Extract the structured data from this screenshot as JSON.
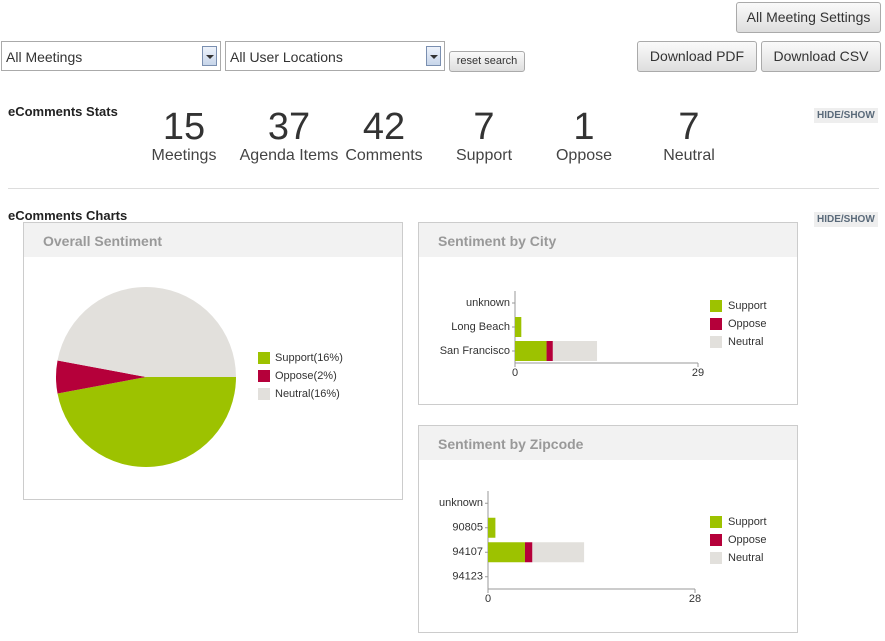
{
  "toolbar": {
    "settings_button": "All Meeting Settings",
    "meetings_select": "All Meetings",
    "locations_select": "All User Locations",
    "reset_button": "reset search",
    "pdf_button": "Download PDF",
    "csv_button": "Download CSV"
  },
  "stats": {
    "title": "eComments Stats",
    "toggle": "HIDE/SHOW",
    "items": [
      {
        "value": 15,
        "label": "Meetings"
      },
      {
        "value": 37,
        "label": "Agenda Items"
      },
      {
        "value": 42,
        "label": "Comments"
      },
      {
        "value": 7,
        "label": "Support"
      },
      {
        "value": 1,
        "label": "Oppose"
      },
      {
        "value": 7,
        "label": "Neutral"
      }
    ]
  },
  "charts_section": {
    "title": "eComments Charts",
    "toggle": "HIDE/SHOW"
  },
  "chart_data": [
    {
      "type": "pie",
      "title": "Overall Sentiment",
      "values": [
        16,
        2,
        16
      ],
      "value_labels": [
        "Support(16%)",
        "Oppose(2%)",
        "Neutral(16%)"
      ],
      "colors": [
        "#9dc200",
        "#b5003a",
        "#e2e0dc"
      ]
    },
    {
      "type": "bar",
      "title": "Sentiment by City",
      "orientation": "horizontal",
      "stacked": true,
      "categories": [
        "unknown",
        "Long Beach",
        "San Francisco"
      ],
      "series": [
        {
          "name": "Support",
          "color": "#9dc200",
          "values": [
            0,
            1,
            5
          ]
        },
        {
          "name": "Oppose",
          "color": "#b5003a",
          "values": [
            0,
            0,
            1
          ]
        },
        {
          "name": "Neutral",
          "color": "#e2e0dc",
          "values": [
            0,
            0,
            7
          ]
        }
      ],
      "xlim": [
        0,
        29
      ],
      "xticks": [
        0,
        29
      ]
    },
    {
      "type": "bar",
      "title": "Sentiment by Zipcode",
      "orientation": "horizontal",
      "stacked": true,
      "categories": [
        "unknown",
        "90805",
        "94107",
        "94123"
      ],
      "series": [
        {
          "name": "Support",
          "color": "#9dc200",
          "values": [
            0,
            1,
            5,
            0
          ]
        },
        {
          "name": "Oppose",
          "color": "#b5003a",
          "values": [
            0,
            0,
            1,
            0
          ]
        },
        {
          "name": "Neutral",
          "color": "#e2e0dc",
          "values": [
            0,
            0,
            7,
            0
          ]
        }
      ],
      "xlim": [
        0,
        28
      ],
      "xticks": [
        0,
        28
      ]
    }
  ]
}
